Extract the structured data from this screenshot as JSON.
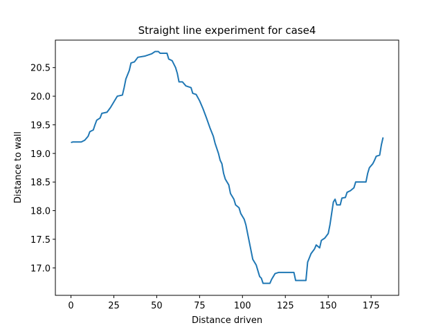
{
  "chart_data": {
    "type": "line",
    "title": "Straight line experiment for case4",
    "xlabel": "Distance driven",
    "ylabel": "Distance to wall",
    "x": [
      0,
      1,
      6,
      8,
      10,
      11,
      13,
      14,
      15,
      17,
      18,
      21,
      23,
      25,
      27,
      30,
      31,
      32,
      34,
      35,
      37,
      39,
      43,
      47,
      49,
      51,
      52,
      56,
      57,
      59,
      61,
      62,
      63,
      65,
      67,
      70,
      71,
      73,
      75,
      77,
      79,
      81,
      83,
      84,
      86,
      87,
      88,
      89,
      90,
      92,
      93,
      95,
      96,
      98,
      99,
      101,
      102,
      103,
      104,
      105,
      106,
      108,
      109,
      110,
      111,
      112,
      116,
      117,
      119,
      121,
      130,
      131,
      137,
      138,
      140,
      142,
      143,
      145,
      146,
      148,
      150,
      151,
      152,
      153,
      154,
      155,
      157,
      158,
      160,
      161,
      163,
      165,
      166,
      172,
      173,
      174,
      176,
      177,
      178,
      180,
      181,
      182
    ],
    "series": [
      {
        "name": "case4",
        "color": "#1f77b4",
        "values": [
          19.19,
          19.2,
          19.2,
          19.23,
          19.3,
          19.38,
          19.41,
          19.5,
          19.58,
          19.62,
          19.7,
          19.72,
          19.8,
          19.9,
          20.0,
          20.02,
          20.15,
          20.3,
          20.45,
          20.58,
          20.6,
          20.68,
          20.7,
          20.74,
          20.78,
          20.78,
          20.75,
          20.75,
          20.65,
          20.62,
          20.5,
          20.4,
          20.25,
          20.25,
          20.18,
          20.15,
          20.05,
          20.03,
          19.92,
          19.78,
          19.62,
          19.45,
          19.3,
          19.18,
          19.0,
          18.88,
          18.82,
          18.65,
          18.55,
          18.45,
          18.3,
          18.2,
          18.1,
          18.05,
          17.95,
          17.85,
          17.75,
          17.6,
          17.45,
          17.3,
          17.15,
          17.05,
          16.95,
          16.85,
          16.82,
          16.73,
          16.73,
          16.8,
          16.9,
          16.92,
          16.92,
          16.78,
          16.78,
          17.1,
          17.25,
          17.33,
          17.4,
          17.35,
          17.48,
          17.52,
          17.6,
          17.75,
          17.95,
          18.15,
          18.2,
          18.1,
          18.1,
          18.22,
          18.23,
          18.32,
          18.35,
          18.4,
          18.5,
          18.5,
          18.65,
          18.75,
          18.82,
          18.88,
          18.95,
          18.97,
          19.15,
          19.28
        ]
      }
    ],
    "xlim": [
      -9.1,
      191.1
    ],
    "ylim": [
      16.52,
      20.98
    ],
    "xticks": [
      0,
      25,
      50,
      75,
      100,
      125,
      150,
      175
    ],
    "yticks": [
      {
        "value": 17,
        "label": "17.0"
      },
      17.5,
      {
        "value": 18,
        "label": "18.0"
      },
      18.5,
      {
        "value": 19,
        "label": "19.0"
      },
      19.5,
      {
        "value": 20,
        "label": "20.0"
      },
      20.5
    ]
  }
}
